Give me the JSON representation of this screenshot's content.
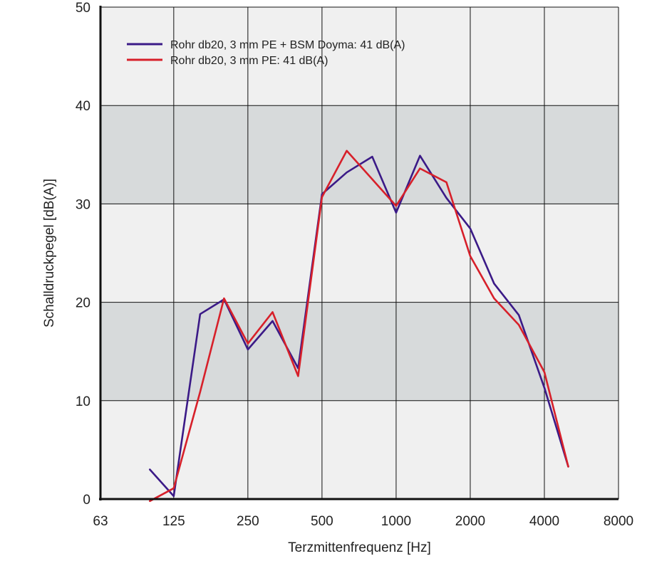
{
  "chart_data": {
    "type": "line",
    "xlabel": "Terzmittenfrequenz [Hz]",
    "ylabel": "Schalldruckpegel [dB(A)]",
    "x_scale": "log",
    "x_ticks": [
      63,
      125,
      250,
      500,
      1000,
      2000,
      4000,
      8000
    ],
    "x_tick_labels": [
      "63",
      "125",
      "250",
      "500",
      "1000",
      "2000",
      "4000",
      "8000"
    ],
    "xlim": [
      63,
      8000
    ],
    "y_ticks": [
      0,
      10,
      20,
      30,
      40,
      50
    ],
    "y_tick_labels": [
      "0",
      "10",
      "20",
      "30",
      "40",
      "50"
    ],
    "ylim": [
      0,
      50
    ],
    "grid": true,
    "legend_position": "top-left",
    "band_colors": [
      "#f0f0f0",
      "#d7dadb"
    ],
    "series": [
      {
        "name": "Rohr db20, 3 mm PE + BSM Doyma: 41 dB(A)",
        "color": "#3b1a87",
        "x": [
          100,
          125,
          160,
          200,
          250,
          315,
          400,
          500,
          630,
          800,
          1000,
          1250,
          1600,
          2000,
          2500,
          3150,
          4000,
          5000
        ],
        "y": [
          3.0,
          0.3,
          18.8,
          20.3,
          15.2,
          18.1,
          13.3,
          31.0,
          33.2,
          34.8,
          29.1,
          34.9,
          30.6,
          27.5,
          21.9,
          18.7,
          11.3,
          3.3
        ]
      },
      {
        "name": "Rohr db20, 3 mm PE: 41 dB(A)",
        "color": "#d7202a",
        "x": [
          100,
          125,
          160,
          200,
          250,
          315,
          400,
          500,
          630,
          800,
          1000,
          1250,
          1600,
          2000,
          2500,
          3150,
          4000,
          5000
        ],
        "y": [
          -0.2,
          1.1,
          10.9,
          20.4,
          15.8,
          19.0,
          12.5,
          30.7,
          35.4,
          32.5,
          29.8,
          33.6,
          32.2,
          24.7,
          20.4,
          17.7,
          12.9,
          3.3
        ]
      }
    ]
  }
}
